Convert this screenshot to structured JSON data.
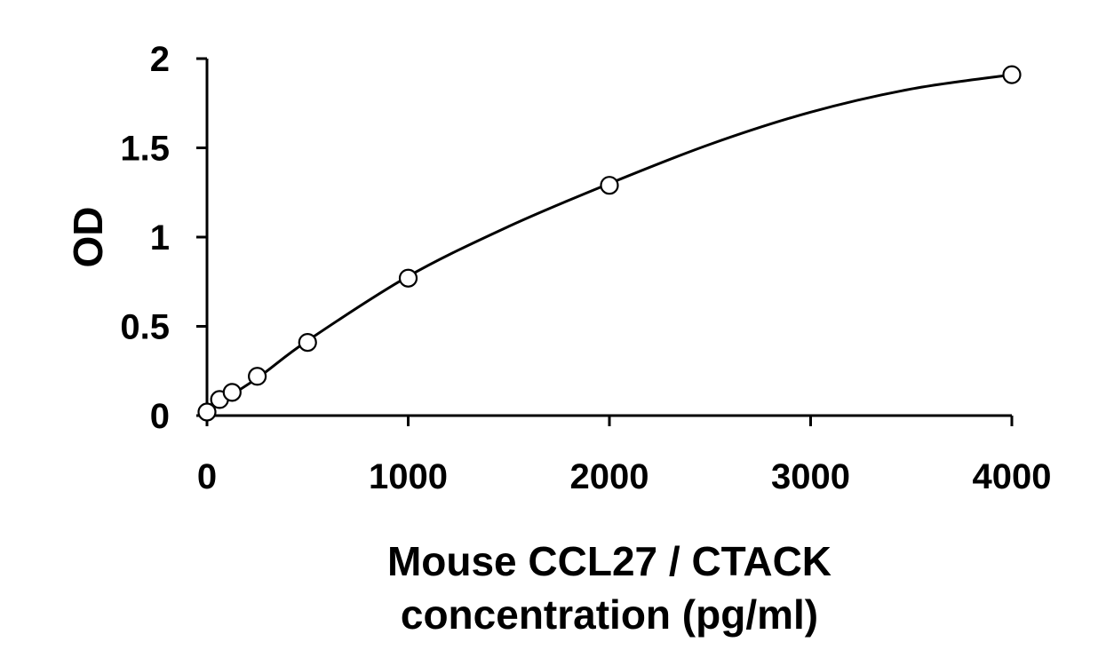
{
  "chart_data": {
    "type": "scatter",
    "title": "",
    "xlabel_lines": [
      "Mouse CCL27 / CTACK",
      "concentration (pg/ml)"
    ],
    "ylabel": "OD",
    "xlim": [
      0,
      4000
    ],
    "ylim": [
      0,
      2
    ],
    "x_ticks": [
      0,
      1000,
      2000,
      3000,
      4000
    ],
    "x_tick_labels": [
      "0",
      "1000",
      "2000",
      "3000",
      "4000"
    ],
    "y_ticks": [
      0,
      0.5,
      1,
      1.5,
      2
    ],
    "y_tick_labels": [
      "0",
      "0.5",
      "1",
      "1.5",
      "2"
    ],
    "grid": false,
    "legend": "none",
    "series": [
      {
        "marker": "open-circle",
        "x": [
          0,
          62.5,
          125,
          250,
          500,
          1000,
          2000,
          4000
        ],
        "y": [
          0.02,
          0.09,
          0.13,
          0.22,
          0.41,
          0.77,
          1.29,
          1.91
        ]
      }
    ],
    "fit_curve": {
      "type": "smooth",
      "x": [
        0,
        250,
        500,
        1000,
        1500,
        2000,
        2500,
        3000,
        3500,
        4000
      ],
      "y": [
        0.03,
        0.21,
        0.42,
        0.78,
        1.06,
        1.3,
        1.52,
        1.7,
        1.83,
        1.91
      ]
    },
    "colors": {
      "axis": "#000000",
      "line": "#000000",
      "marker_fill": "#ffffff",
      "marker_stroke": "#000000"
    }
  }
}
